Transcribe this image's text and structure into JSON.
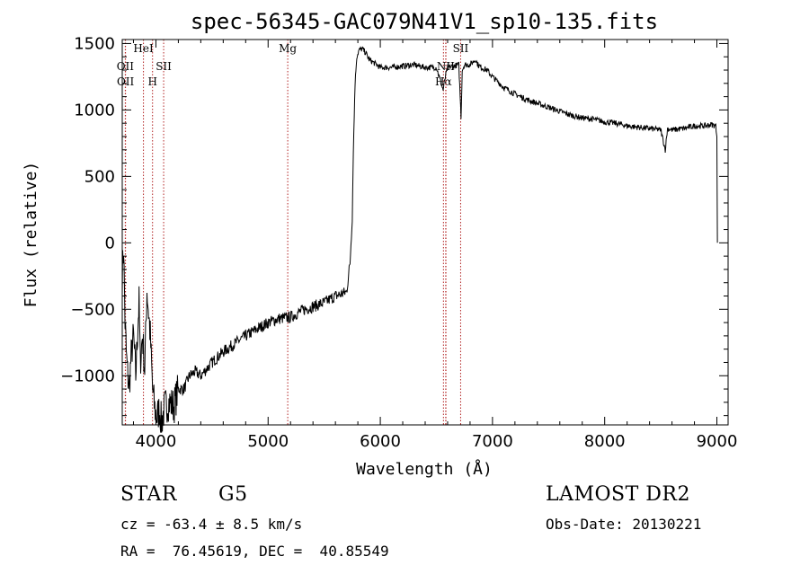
{
  "chart_data": {
    "type": "line",
    "title": "spec-56345-GAC079N41V1_sp10-135.fits",
    "xlabel": "Wavelength (Å)",
    "ylabel": "Flux (relative)",
    "xlim": [
      3700,
      9100
    ],
    "ylim": [
      -1370,
      1530
    ],
    "xticks": [
      4000,
      5000,
      6000,
      7000,
      8000,
      9000
    ],
    "yticks": [
      -1000,
      -500,
      0,
      500,
      1000,
      1500
    ],
    "grid": false,
    "legend": "none",
    "line_color": "#000000",
    "marker_color": "#b22222",
    "series": [
      {
        "x": [
          3700,
          3712,
          3725,
          3740,
          3760,
          3780,
          3800,
          3820,
          3840,
          3850,
          3860,
          3880,
          3900,
          3920,
          3950,
          3970,
          3990,
          4010,
          4030,
          4050,
          4080,
          4120,
          4160,
          4200,
          4250,
          4300,
          4350,
          4400,
          4500,
          4600,
          4700,
          4800,
          4900,
          5000,
          5100,
          5200,
          5300,
          5400,
          5500,
          5600,
          5700,
          5730,
          5750,
          5760,
          5775,
          5790,
          5810,
          5840,
          5870,
          5900,
          5950,
          6000,
          6100,
          6200,
          6300,
          6400,
          6500,
          6560,
          6580,
          6600,
          6650,
          6700,
          6720,
          6730,
          6750,
          6800,
          6850,
          6870,
          6900,
          6950,
          7000,
          7100,
          7200,
          7300,
          7400,
          7500,
          7600,
          7700,
          7800,
          7900,
          8000,
          8100,
          8200,
          8300,
          8400,
          8500,
          8540,
          8560,
          8600,
          8700,
          8800,
          8900,
          8950,
          8990,
          9000,
          9005
        ],
        "y": [
          -250,
          -20,
          -600,
          -900,
          -1100,
          -850,
          -700,
          -1000,
          -600,
          -450,
          -900,
          -700,
          -950,
          -350,
          -700,
          -1100,
          -1250,
          -1320,
          -1250,
          -1350,
          -1230,
          -1200,
          -1230,
          -1100,
          -1100,
          -1000,
          -970,
          -1000,
          -900,
          -820,
          -760,
          -700,
          -650,
          -600,
          -570,
          -560,
          -510,
          -480,
          -450,
          -400,
          -370,
          -150,
          200,
          700,
          1200,
          1400,
          1450,
          1460,
          1430,
          1380,
          1350,
          1320,
          1320,
          1330,
          1340,
          1320,
          1320,
          1150,
          1250,
          1320,
          1330,
          1340,
          950,
          1300,
          1340,
          1340,
          1380,
          1340,
          1320,
          1300,
          1250,
          1170,
          1120,
          1080,
          1050,
          1020,
          990,
          960,
          940,
          930,
          910,
          900,
          880,
          870,
          860,
          850,
          700,
          860,
          850,
          860,
          880,
          880,
          890,
          880,
          800,
          0
        ]
      }
    ],
    "line_markers": [
      {
        "label": "OII",
        "x": 3727,
        "level": 1
      },
      {
        "label": "OII",
        "x": 3729,
        "level": 2
      },
      {
        "label": "HeI",
        "x": 3889,
        "level": 0
      },
      {
        "label": "H",
        "x": 3970,
        "level": 2
      },
      {
        "label": "SII",
        "x": 4069,
        "level": 1
      },
      {
        "label": "Mg",
        "x": 5175,
        "level": 0
      },
      {
        "label": "Hα",
        "x": 6563,
        "level": 2
      },
      {
        "label": "NII",
        "x": 6583,
        "level": 1
      },
      {
        "label": "SII",
        "x": 6716,
        "level": 0
      },
      {
        "label": "",
        "x": 6585,
        "level": 0
      }
    ]
  },
  "info": {
    "class": "STAR",
    "subclass": "G5",
    "survey": "LAMOST DR2",
    "cz": "cz = -63.4 ± 8.5 km/s",
    "obs_date": "Obs-Date: 20130221",
    "radec": "RA =  76.45619, DEC =  40.85549"
  }
}
